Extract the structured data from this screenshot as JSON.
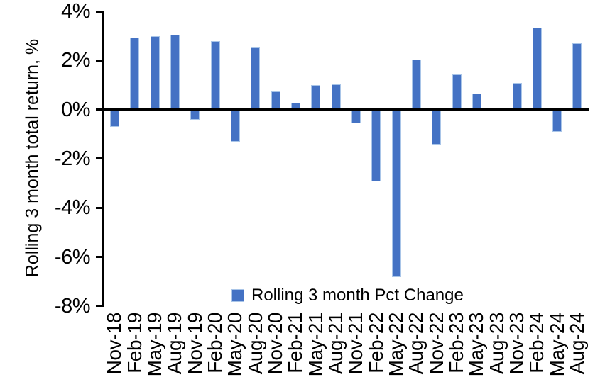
{
  "chart_data": {
    "type": "bar",
    "title": "",
    "xlabel": "",
    "ylabel": "Rolling 3 month total return, %",
    "ylim": [
      -8,
      4
    ],
    "ytick_step_pct": 2,
    "yticks": [
      "4%",
      "2%",
      "0%",
      "-2%",
      "-4%",
      "-6%",
      "-8%"
    ],
    "grid": false,
    "legend": {
      "label": "Rolling 3 month Pct Change",
      "position": "inside-bottom-center"
    },
    "colors": {
      "bar_fill": "#4472C4",
      "bar_border": "#A9C5E8",
      "axis": "#000000",
      "text": "#000000",
      "background": "#FFFFFF"
    },
    "categories": [
      "Nov-18",
      "Feb-19",
      "May-19",
      "Aug-19",
      "Nov-19",
      "Feb-20",
      "May-20",
      "Aug-20",
      "Nov-20",
      "Feb-21",
      "May-21",
      "Aug-21",
      "Nov-21",
      "Feb-22",
      "May-22",
      "Aug-22",
      "Nov-22",
      "Feb-23",
      "May-23",
      "Aug-23",
      "Nov-23",
      "Feb-24",
      "May-24",
      "Aug-24"
    ],
    "values": [
      -0.7,
      2.95,
      3.0,
      3.05,
      -0.4,
      2.8,
      -1.3,
      2.55,
      0.75,
      0.3,
      1.0,
      1.05,
      -0.55,
      -2.9,
      -6.8,
      2.05,
      -1.4,
      1.45,
      0.65,
      0.0,
      1.1,
      3.35,
      -0.9,
      2.7
    ],
    "values_unit": "%"
  }
}
